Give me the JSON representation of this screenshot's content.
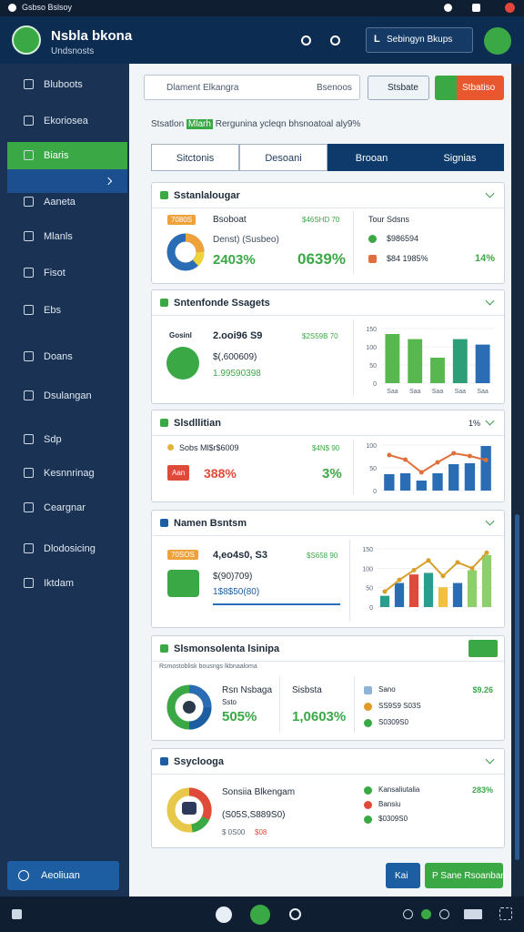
{
  "status_bar": {
    "title": "Gsbso Bslsoy"
  },
  "header": {
    "title": "Nsbla bkona",
    "subtitle": "Undsnosts",
    "button_mark": "L",
    "button": "Sebingyn Bkups"
  },
  "sidebar": {
    "items": [
      "Bluboots",
      "Ekoriosea",
      "Biaris",
      "Aaneta",
      "Mlanls",
      "Fisot",
      "Ebs",
      "Doans",
      "Dsulangan",
      "Sdp",
      "Kesnnrinag",
      "Ceargnar",
      "Dlodosicing",
      "Iktdam"
    ],
    "active_index": 2,
    "footer_button": "Aeoliuan"
  },
  "toolbar": {
    "search_placeholder": "Dlament Elkangra",
    "search_button": "Bsenoos",
    "view_button": "Stsbate",
    "action_button": "Stbatiso"
  },
  "info_line": {
    "label": "Stsatlon",
    "highlight": "Mlarh",
    "text": "Rergunina ycleqn bhsnoatoal aly9%"
  },
  "tabs": [
    {
      "label": "Sitctonis",
      "active": false
    },
    {
      "label": "Desoani",
      "active": false
    },
    {
      "label": "Brooan",
      "active": true
    },
    {
      "label": "Signias",
      "active": true
    }
  ],
  "cards": [
    {
      "title": "Sstanlalougar",
      "badge": "7080S",
      "label": "Bsoboat",
      "amount": "$46SHD 70",
      "sub": "Denst) (Susbeo)",
      "percent": "2403%",
      "big": "0639%",
      "right_title": "Tour Sdsns",
      "right_items": [
        "$986594",
        "$84 1985%"
      ],
      "right_value": "14%"
    },
    {
      "title": "Sntenfonde Ssagets",
      "icon_label": "Gosinl",
      "label": "2.ooi96 S9",
      "amount": "$2S59B 70",
      "sub": "$(,600609)",
      "percent": "1.99590398",
      "chart": {
        "type": "bar",
        "categories": [
          "Saa",
          "Saa",
          "Saa",
          "Saa",
          "Saa"
        ],
        "values": [
          135,
          121,
          70,
          121,
          106
        ],
        "colors": [
          "#58b84f",
          "#58b84f",
          "#58b84f",
          "#2e9e78",
          "#2a6db5"
        ],
        "ylim": [
          0,
          150
        ],
        "yticks": [
          0,
          50,
          100,
          150
        ]
      }
    },
    {
      "title": "Slsdllitian",
      "header_value": "1%",
      "label": "Sobs Ml$r$6009",
      "amount": "$4N$ 90",
      "badge": "Aan",
      "percent": "388%",
      "big": "3%",
      "chart": {
        "type": "bar-line",
        "categories": [
          null,
          null,
          null,
          null,
          null,
          null,
          null
        ],
        "values": [
          36,
          38,
          22,
          38,
          58,
          60,
          98
        ],
        "colors": [
          "#2a6db5",
          "#2a6db5",
          "#2a6db5",
          "#2a6db5",
          "#2a6db5",
          "#2a6db5",
          "#2a6db5"
        ],
        "line_values": [
          78,
          68,
          40,
          62,
          82,
          76,
          67
        ],
        "line_color": "#e0703a",
        "ylim": [
          0,
          100
        ],
        "yticks": [
          0,
          50,
          100
        ]
      }
    },
    {
      "title": "Namen Bsntsm",
      "badge": "70SOS",
      "label": "4,eo4s0, S3",
      "amount": "$S658 90",
      "sub": "$(90)709)",
      "percent": "1$8$50(80)",
      "chart": {
        "type": "bar-line",
        "categories": [
          null,
          null,
          null,
          null,
          null,
          null,
          null,
          null
        ],
        "values": [
          29,
          62,
          84,
          88,
          51,
          62,
          95,
          134
        ],
        "colors": [
          "#2a9d8f",
          "#2a6db5",
          "#e04a3a",
          "#2a9d8f",
          "#f0c040",
          "#2a6db5",
          "#8dcf6a",
          "#8dcf6a"
        ],
        "line_values": [
          40,
          70,
          95,
          120,
          80,
          115,
          100,
          140
        ],
        "line_color": "#d6a02a",
        "ylim": [
          0,
          150
        ],
        "yticks": [
          0,
          50,
          100,
          150
        ]
      }
    },
    {
      "title": "Slsmonsolenta lsinipa",
      "note": "Rsmostoblisk bousngs lkbnaaloma",
      "label": "Rsn Nsbaga",
      "sub": "Ssto",
      "percent": "505%",
      "right_label": "Sisbsta",
      "big": "1,0603%",
      "legend": [
        "Sano",
        "SS9S9 S03S",
        "S0309S0"
      ],
      "legend_value": "$9.26"
    },
    {
      "title": "Ssyclooga",
      "label": "Sonsiia Blkengam",
      "sub": "(S05S,S889S0)",
      "small": "$ 0S00",
      "small_red": "$08",
      "legend": [
        "Kansaliutalia",
        "Bansiu",
        "$0309S0"
      ],
      "legend_value": "283%"
    }
  ],
  "footer_buttons": [
    "Kai",
    "P Sane Rsoanban"
  ]
}
